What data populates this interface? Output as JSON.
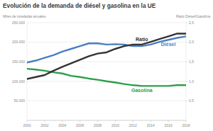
{
  "chart_data": {
    "type": "line",
    "title": "Evolución de la demanda de diésel y gasolina en la UE",
    "y_label": "Miles de toneladas anuales",
    "y2_label": "Ratio Diésel/Gasolina",
    "x": [
      2000,
      2001,
      2002,
      2003,
      2004,
      2005,
      2006,
      2007,
      2008,
      2009,
      2010,
      2011,
      2012,
      2013,
      2014,
      2015,
      2016,
      2017,
      2018
    ],
    "xlim": [
      2000,
      2018
    ],
    "xticks": [
      2000,
      2002,
      2004,
      2006,
      2008,
      2010,
      2012,
      2014,
      2016,
      2018
    ],
    "ylim": [
      0,
      250000
    ],
    "yticks": [
      {
        "value": 50000,
        "label": "50.000"
      },
      {
        "value": 100000,
        "label": "100.000"
      },
      {
        "value": 150000,
        "label": "150.000"
      },
      {
        "value": 200000,
        "label": "200.000"
      },
      {
        "value": 250000,
        "label": "250.000"
      }
    ],
    "y2lim": [
      0,
      2.5
    ],
    "y2ticks": [
      {
        "value": 0.5,
        "label": "0,5"
      },
      {
        "value": 1.0,
        "label": "1,0"
      },
      {
        "value": 1.5,
        "label": "1,5"
      },
      {
        "value": 2.0,
        "label": "2,0"
      },
      {
        "value": 2.5,
        "label": "2,5"
      }
    ],
    "grid": true,
    "series": [
      {
        "name": "Diésel",
        "color": "#4a7fc1",
        "values": [
          148000,
          153000,
          160000,
          167000,
          176000,
          183000,
          190000,
          197000,
          197000,
          194000,
          195000,
          194000,
          190000,
          190000,
          194000,
          201000,
          206000,
          211000,
          215000
        ]
      },
      {
        "name": "Gasolina",
        "color": "#2e9e4a",
        "values": [
          132000,
          130000,
          127000,
          123000,
          120000,
          114000,
          111000,
          107000,
          104000,
          100000,
          97000,
          93000,
          90000,
          88000,
          88000,
          88000,
          88000,
          90000,
          90000
        ]
      },
      {
        "name": "Ratio",
        "color": "#333333",
        "axis": "y2",
        "values": [
          1.06,
          1.11,
          1.16,
          1.27,
          1.37,
          1.46,
          1.55,
          1.64,
          1.71,
          1.74,
          1.83,
          1.9,
          1.94,
          1.94,
          2.01,
          2.08,
          2.15,
          2.22,
          2.22
        ]
      }
    ]
  }
}
